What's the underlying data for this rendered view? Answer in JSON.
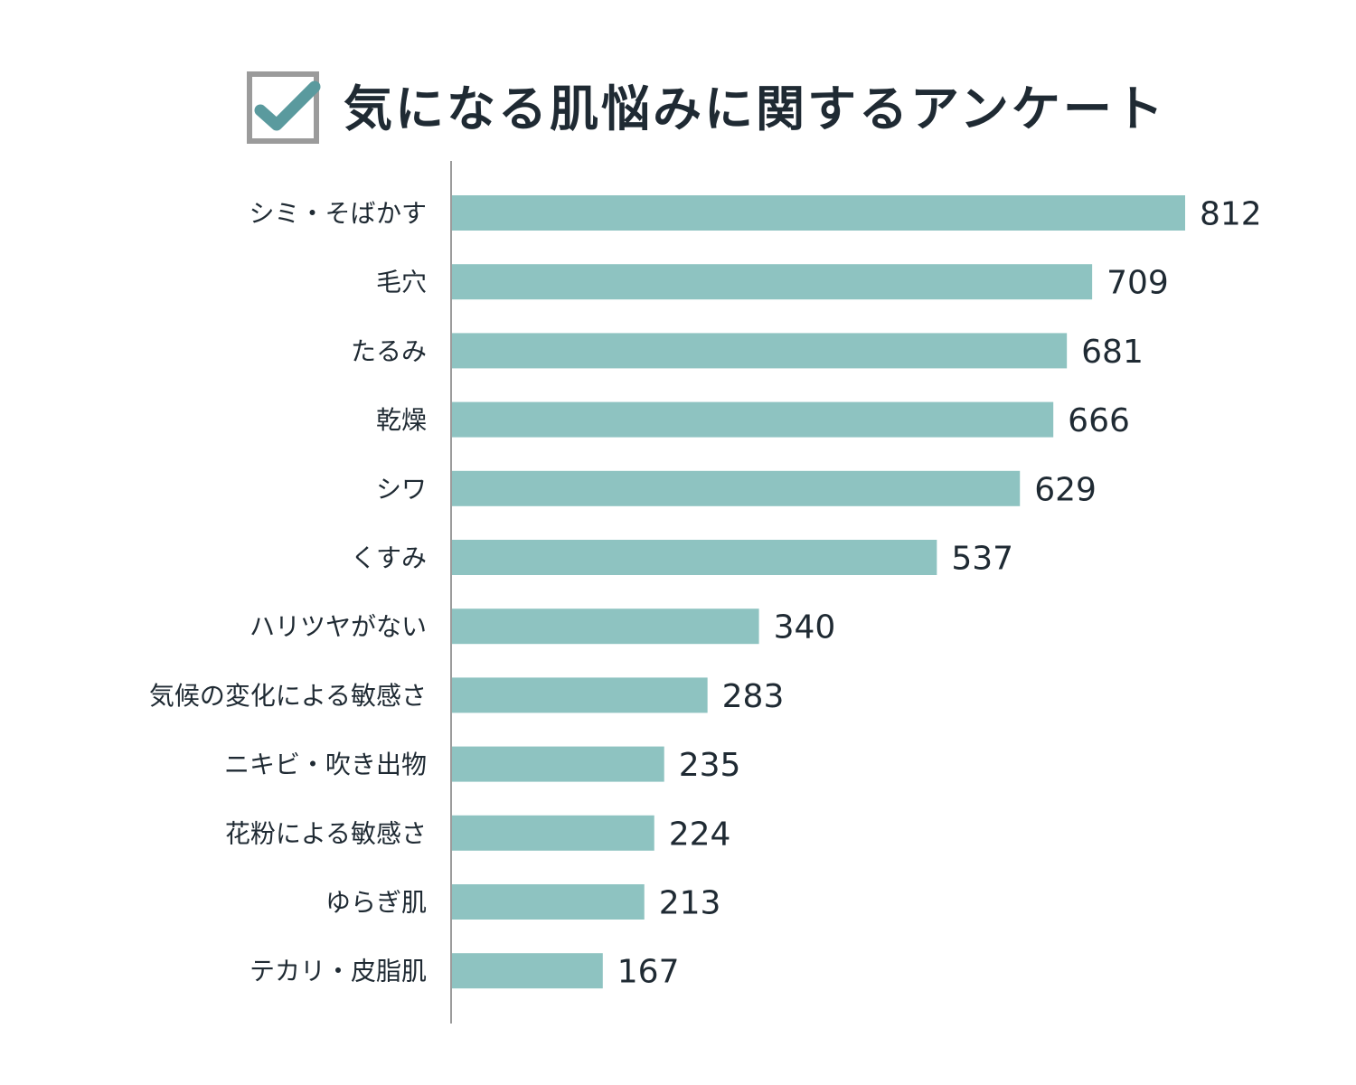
{
  "header": {
    "title": "気になる肌悩みに関するアンケート",
    "icon": "checkbox-checked-icon",
    "box_color": "#9b9b9b",
    "check_color": "#5a9a9e"
  },
  "colors": {
    "bar": "#8ec3c1",
    "axis": "#9b9b9b",
    "text": "#1f2a33"
  },
  "chart_data": {
    "type": "bar",
    "orientation": "horizontal",
    "title": "気になる肌悩みに関するアンケート",
    "categories": [
      "シミ・そばかす",
      "毛穴",
      "たるみ",
      "乾燥",
      "シワ",
      "くすみ",
      "ハリツヤがない",
      "気候の変化による敏感さ",
      "ニキビ・吹き出物",
      "花粉による敏感さ",
      "ゆらぎ肌",
      "テカリ・皮脂肌"
    ],
    "values": [
      812,
      709,
      681,
      666,
      629,
      537,
      340,
      283,
      235,
      224,
      213,
      167
    ],
    "data_labels": [
      "812",
      "709",
      "681",
      "666",
      "629",
      "537",
      "340",
      "283",
      "235",
      "224",
      "213",
      "167"
    ],
    "xlim": [
      0,
      812
    ],
    "grid": false,
    "legend": "none"
  }
}
